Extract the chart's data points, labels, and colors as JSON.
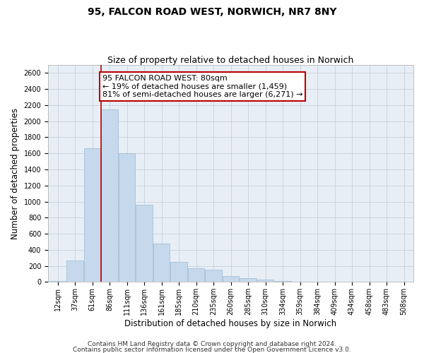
{
  "title": "95, FALCON ROAD WEST, NORWICH, NR7 8NY",
  "subtitle": "Size of property relative to detached houses in Norwich",
  "xlabel": "Distribution of detached houses by size in Norwich",
  "ylabel": "Number of detached properties",
  "bar_color": "#c6d9ec",
  "bar_edge_color": "#9ab8d4",
  "grid_color": "#c0ccd8",
  "bg_color": "#e8eef5",
  "categories": [
    "12sqm",
    "37sqm",
    "61sqm",
    "86sqm",
    "111sqm",
    "136sqm",
    "161sqm",
    "185sqm",
    "210sqm",
    "235sqm",
    "260sqm",
    "285sqm",
    "310sqm",
    "334sqm",
    "359sqm",
    "384sqm",
    "409sqm",
    "434sqm",
    "458sqm",
    "483sqm",
    "508sqm"
  ],
  "values": [
    12,
    270,
    1660,
    2150,
    1600,
    960,
    480,
    250,
    175,
    155,
    75,
    48,
    28,
    12,
    8,
    8,
    4,
    4,
    2,
    4,
    4
  ],
  "ylim": [
    0,
    2700
  ],
  "yticks": [
    0,
    200,
    400,
    600,
    800,
    1000,
    1200,
    1400,
    1600,
    1800,
    2000,
    2200,
    2400,
    2600
  ],
  "red_line_bar_index": 3,
  "annotation_text": "95 FALCON ROAD WEST: 80sqm\n← 19% of detached houses are smaller (1,459)\n81% of semi-detached houses are larger (6,271) →",
  "footnote1": "Contains HM Land Registry data © Crown copyright and database right 2024.",
  "footnote2": "Contains public sector information licensed under the Open Government Licence v3.0.",
  "annotation_box_color": "#bb0000",
  "title_fontsize": 10,
  "subtitle_fontsize": 9,
  "annotation_fontsize": 8,
  "tick_fontsize": 7,
  "label_fontsize": 8.5,
  "footnote_fontsize": 6.5
}
